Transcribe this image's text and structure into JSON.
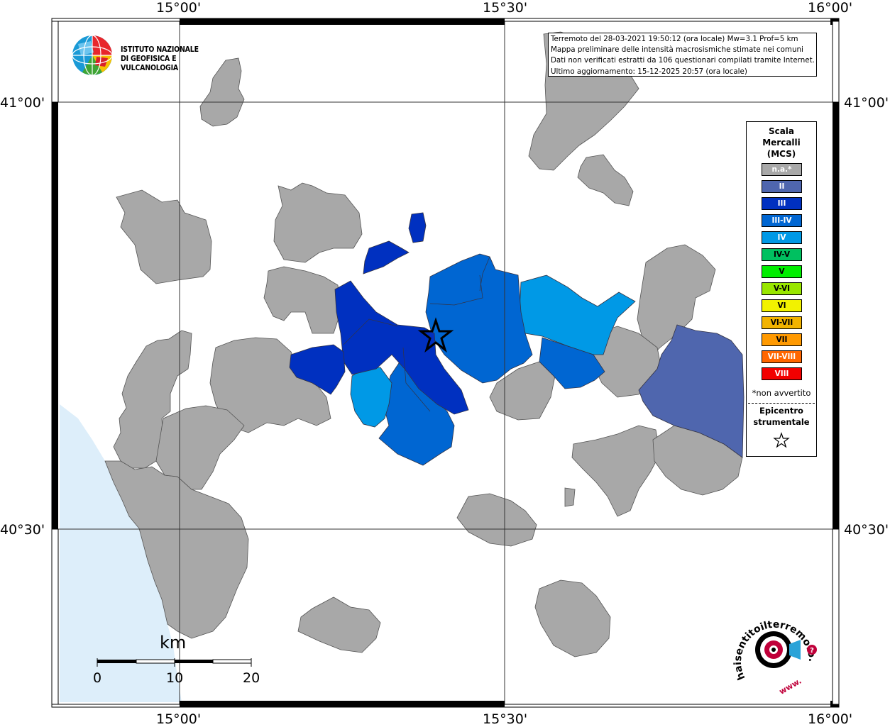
{
  "info": {
    "line1": "Terremoto del 28-03-2021 19:50:12 (ora locale) Mw=3.1 Prof=5 km",
    "line2": "Mappa preliminare delle intensità macrosismiche stimate nei comuni",
    "line3": "Dati non verificati estratti da 106 questionari compilati tramite Internet.",
    "line4": "Ultimo aggiornamento: 15-12-2025 20:57 (ora locale)"
  },
  "logo": {
    "line1": "ISTITUTO NAZIONALE",
    "line2": "DI GEOFISICA E VULCANOLOGIA"
  },
  "coords": {
    "top": [
      "15°00'",
      "15°30'",
      "16°00'"
    ],
    "bottom": [
      "15°00'",
      "15°30'",
      "16°00'"
    ],
    "left": [
      "41°00'",
      "40°30'"
    ],
    "right": [
      "41°00'",
      "40°30'"
    ]
  },
  "legend": {
    "title1": "Scala",
    "title2": "Mercalli",
    "title3": "(MCS)",
    "classes": [
      {
        "label": "n.a.*",
        "color": "#a8a8a8"
      },
      {
        "label": "II",
        "color": "#4f66ae"
      },
      {
        "label": "III",
        "color": "#0030c0"
      },
      {
        "label": "III-IV",
        "color": "#0066d2"
      },
      {
        "label": "IV",
        "color": "#0099e6"
      },
      {
        "label": "IV-V",
        "color": "#00c060"
      },
      {
        "label": "V",
        "color": "#00ee00"
      },
      {
        "label": "V-VI",
        "color": "#99e600"
      },
      {
        "label": "VI",
        "color": "#f2f200"
      },
      {
        "label": "VI-VII",
        "color": "#f2b300"
      },
      {
        "label": "VII",
        "color": "#ff9900"
      },
      {
        "label": "VII-VIII",
        "color": "#ff6600"
      },
      {
        "label": "VIII",
        "color": "#f20000"
      }
    ],
    "note": "*non avvertito",
    "epicenter1": "Epicentro",
    "epicenter2": "strumentale"
  },
  "scalebar": {
    "unit": "km",
    "ticks": [
      "0",
      "10",
      "20"
    ]
  },
  "brand": {
    "text": "haisentitoilterremoto.it",
    "url_prefix": "www."
  },
  "colors": {
    "sea": "#ddeefa",
    "na": "#a8a8a8",
    "border": "#555555"
  }
}
